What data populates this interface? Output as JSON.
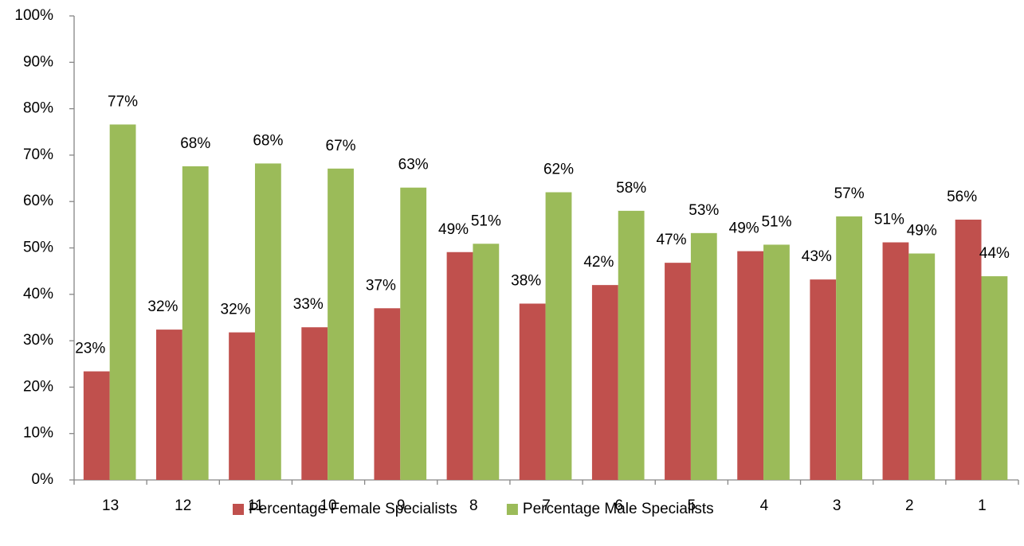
{
  "chart_data": {
    "type": "bar",
    "categories": [
      "13",
      "12",
      "11",
      "10",
      "9",
      "8",
      "7",
      "6",
      "5",
      "4",
      "3",
      "2",
      "1"
    ],
    "series": [
      {
        "name": "Percentage Female Specialists",
        "color": "#c0504d",
        "values": [
          23.4,
          32.4,
          31.8,
          32.9,
          37.0,
          49.1,
          38.0,
          42.0,
          46.8,
          49.3,
          43.2,
          51.2,
          56.1
        ],
        "value_labels": [
          "23%",
          "32%",
          "32%",
          "33%",
          "37%",
          "49%",
          "38%",
          "42%",
          "47%",
          "49%",
          "43%",
          "51%",
          "56%"
        ]
      },
      {
        "name": "Percentage Male Specialists",
        "color": "#9bbb59",
        "values": [
          76.6,
          67.6,
          68.2,
          67.1,
          63.0,
          50.9,
          62.0,
          58.0,
          53.2,
          50.7,
          56.8,
          48.8,
          43.9
        ],
        "value_labels": [
          "77%",
          "68%",
          "68%",
          "67%",
          "63%",
          "51%",
          "62%",
          "58%",
          "53%",
          "51%",
          "57%",
          "49%",
          "44%"
        ]
      }
    ],
    "ylim": [
      0,
      100
    ],
    "yticks": [
      {
        "value": 0,
        "label": "0%"
      },
      {
        "value": 10,
        "label": "10%"
      },
      {
        "value": 20,
        "label": "20%"
      },
      {
        "value": 30,
        "label": "30%"
      },
      {
        "value": 40,
        "label": "40%"
      },
      {
        "value": 50,
        "label": "50%"
      },
      {
        "value": 60,
        "label": "60%"
      },
      {
        "value": 70,
        "label": "70%"
      },
      {
        "value": 80,
        "label": "80%"
      },
      {
        "value": 90,
        "label": "90%"
      },
      {
        "value": 100,
        "label": "100%"
      }
    ],
    "grid": false,
    "legend": "bottom"
  }
}
